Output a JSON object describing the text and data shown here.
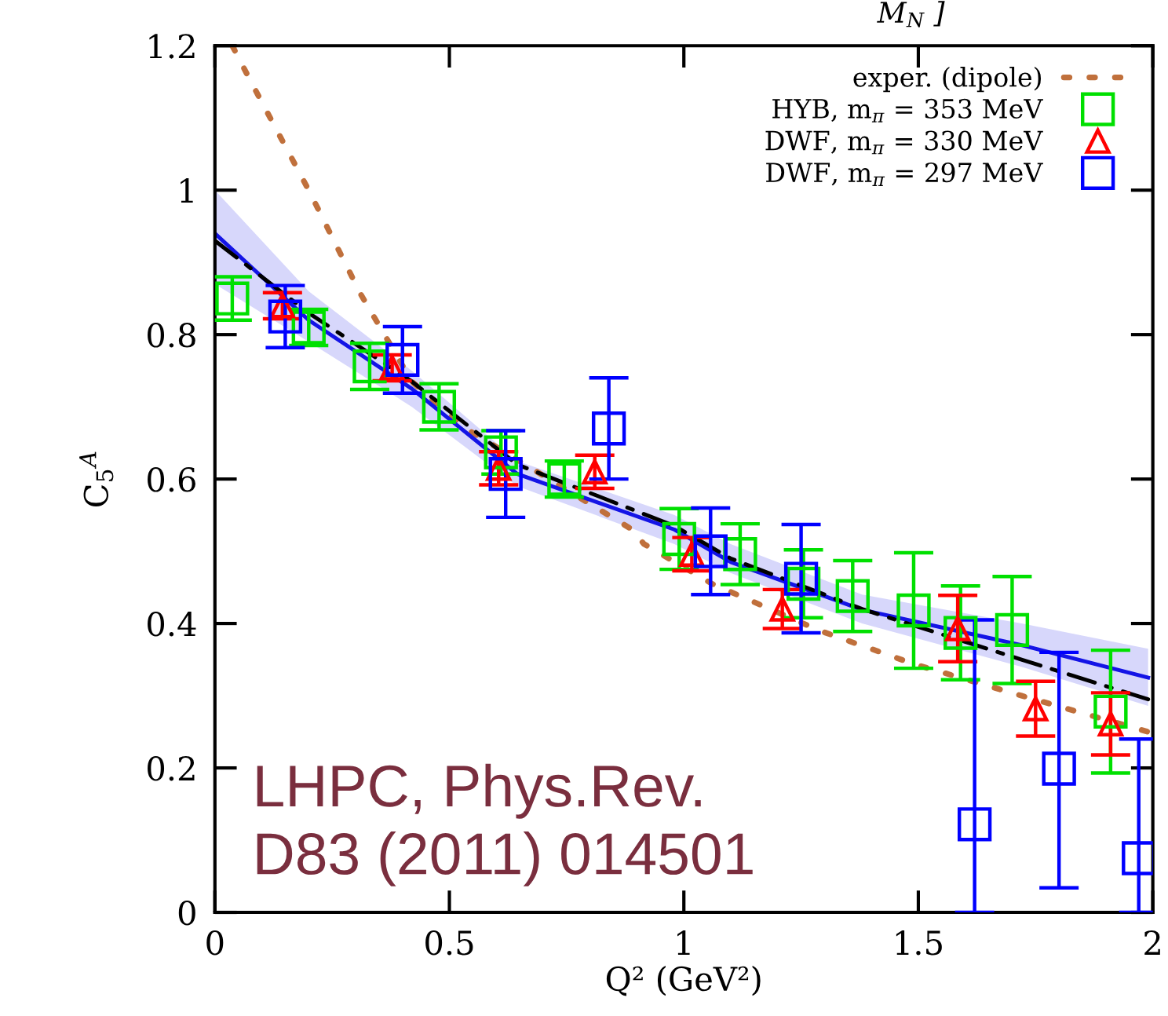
{
  "chart_data": {
    "type": "scatter",
    "xlabel": "Q² (GeV²)",
    "ylabel": "C$_{5}$$^{A}$",
    "xlim": [
      0,
      2
    ],
    "ylim": [
      0,
      1.2
    ],
    "xticks": [
      0,
      0.5,
      1,
      1.5,
      2
    ],
    "yticks": [
      0,
      0.2,
      0.4,
      0.6,
      0.8,
      1,
      1.2
    ],
    "grid": false,
    "legend": "top right",
    "annotations": [
      "LHPC, Phys.Rev.\nD83 (2011) 014501",
      "M$_{N}$ ]"
    ],
    "series": [
      {
        "name": "exper. (dipole)",
        "type": "line",
        "color": "#c0703c",
        "line_style": "dotted",
        "x": [
          0.037,
          0.077,
          0.2,
          0.31,
          0.42,
          0.535,
          0.89,
          0.915,
          1.06,
          1.29,
          1.49,
          1.72,
          1.99
        ],
        "values": [
          1.2,
          1.15,
          1.0,
          0.857,
          0.735,
          0.67,
          0.53,
          0.51,
          0.455,
          0.39,
          0.344,
          0.3,
          0.25
        ]
      },
      {
        "type": "line",
        "color": "#1414e6",
        "line_style": "solid",
        "x": [
          0,
          0.2,
          0.42,
          0.645,
          0.98,
          1.1,
          1.38,
          1.72,
          1.99
        ],
        "values": [
          0.94,
          0.82,
          0.725,
          0.607,
          0.53,
          0.485,
          0.419,
          0.37,
          0.325
        ],
        "lower": [
          0.87,
          0.79,
          0.7,
          0.59,
          0.51,
          0.47,
          0.4,
          0.34,
          0.286
        ],
        "upper": [
          1.0,
          0.86,
          0.75,
          0.625,
          0.55,
          0.51,
          0.44,
          0.4,
          0.365
        ]
      },
      {
        "type": "line",
        "color": "#000000",
        "line_style": "dashed",
        "x": [
          0,
          0.2,
          0.42,
          0.645,
          0.98,
          1.1,
          1.38,
          1.72,
          1.99
        ],
        "values": [
          0.93,
          0.83,
          0.735,
          0.62,
          0.535,
          0.49,
          0.42,
          0.35,
          0.295
        ]
      },
      {
        "name": "HYB, m$_{π}$ = 353 MeV",
        "color": "#00e000",
        "marker": "square",
        "x": [
          0.037,
          0.2,
          0.33,
          0.478,
          0.61,
          0.745,
          0.99,
          1.12,
          1.255,
          1.36,
          1.49,
          1.59,
          1.7,
          1.91
        ],
        "values": [
          0.85,
          0.81,
          0.756,
          0.7,
          0.637,
          0.6,
          0.517,
          0.496,
          0.455,
          0.438,
          0.418,
          0.387,
          0.391,
          0.278
        ],
        "errors": [
          0.03,
          0.025,
          0.032,
          0.032,
          0.03,
          0.025,
          0.042,
          0.042,
          0.047,
          0.049,
          0.08,
          0.065,
          0.074,
          0.085
        ]
      },
      {
        "name": "DWF, m$_{π}$ = 330 MeV",
        "color": "#ff0000",
        "marker": "triangle",
        "x": [
          0.144,
          0.378,
          0.605,
          0.81,
          1.017,
          1.21,
          1.584,
          1.75,
          1.91
        ],
        "values": [
          0.84,
          0.754,
          0.615,
          0.61,
          0.496,
          0.42,
          0.393,
          0.282,
          0.261
        ],
        "errors": [
          0.018,
          0.018,
          0.023,
          0.023,
          0.023,
          0.027,
          0.046,
          0.038,
          0.043
        ]
      },
      {
        "name": "DWF, m$_{π}$ = 297 MeV",
        "color": "#0000ff",
        "marker": "square",
        "x": [
          0.15,
          0.4,
          0.62,
          0.84,
          1.057,
          1.25,
          1.62,
          1.8,
          1.97
        ],
        "values": [
          0.825,
          0.765,
          0.607,
          0.67,
          0.5,
          0.462,
          0.122,
          0.199,
          0.075
        ],
        "errors": [
          0.043,
          0.046,
          0.06,
          0.07,
          0.06,
          0.075,
          [
            0,
            0.405
          ],
          [
            0.034,
            0.36
          ],
          [
            0,
            0.24
          ]
        ]
      }
    ]
  }
}
